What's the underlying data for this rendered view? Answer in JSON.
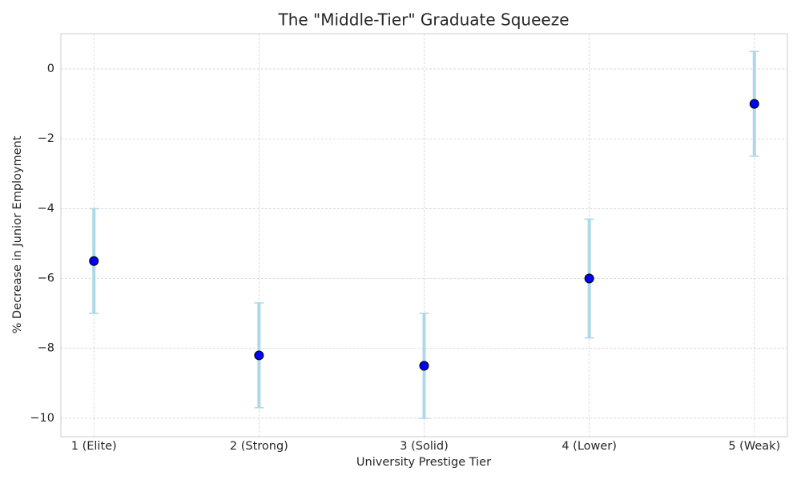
{
  "chart_data": {
    "type": "errorbar",
    "title": "The \"Middle-Tier\" Graduate Squeeze",
    "x_label": "University Prestige Tier",
    "y_label": "% Decrease in Junior Employment",
    "categories": [
      "1 (Elite)",
      "2 (Strong)",
      "3 (Solid)",
      "4 (Lower)",
      "5 (Weak)"
    ],
    "values": [
      -5.5,
      -8.2,
      -8.5,
      -6.0,
      -1.0
    ],
    "errors": [
      1.5,
      1.5,
      1.5,
      1.7,
      1.5
    ],
    "color": "#0000ff",
    "edge_color": "#000000",
    "error_color": "#add8e6",
    "ylim": [
      -10.53,
      1.01
    ],
    "yticks": [
      {
        "value": -10,
        "label": "−10"
      },
      {
        "value": -8,
        "label": "−8"
      },
      {
        "value": -6,
        "label": "−6"
      },
      {
        "value": -4,
        "label": "−4"
      },
      {
        "value": -2,
        "label": "−2"
      },
      0
    ],
    "grid": true
  }
}
